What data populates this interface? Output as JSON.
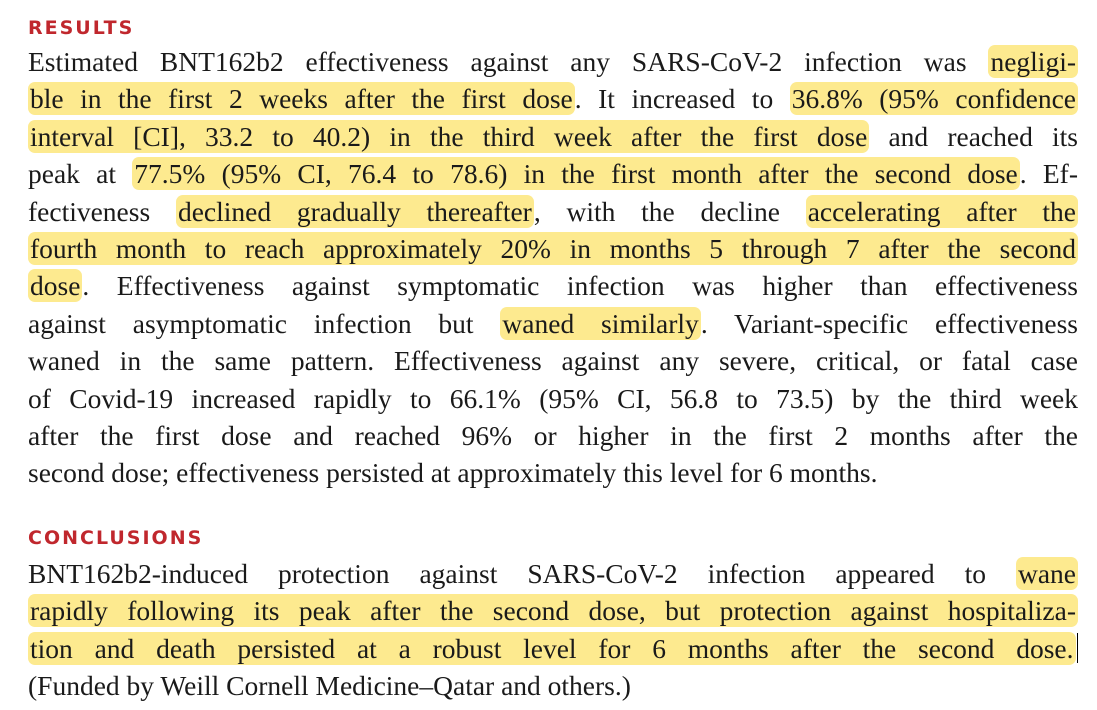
{
  "results": {
    "heading": "RESULTS",
    "lines": [
      {
        "segments": [
          {
            "text": "Estimated BNT162b2 effectiveness against any SARS-CoV-2 infection was ",
            "hl": false
          },
          {
            "text": "negligi-",
            "hl": true
          }
        ]
      },
      {
        "segments": [
          {
            "text": "ble in the first 2 weeks after the first dose",
            "hl": true
          },
          {
            "text": ". It increased to ",
            "hl": false
          },
          {
            "text": "36.8% (95% confidence",
            "hl": true
          }
        ]
      },
      {
        "segments": [
          {
            "text": "interval [CI], 33.2 to 40.2) in the third week after the first dose",
            "hl": true
          },
          {
            "text": " and reached its",
            "hl": false
          }
        ]
      },
      {
        "segments": [
          {
            "text": "peak at ",
            "hl": false
          },
          {
            "text": "77.5% (95% CI, 76.4 to 78.6) in the first month after the second dose",
            "hl": true
          },
          {
            "text": ". Ef-",
            "hl": false
          }
        ]
      },
      {
        "segments": [
          {
            "text": "fectiveness ",
            "hl": false
          },
          {
            "text": "declined gradually thereafter",
            "hl": true
          },
          {
            "text": ", with the decline ",
            "hl": false
          },
          {
            "text": "accelerating after the",
            "hl": true
          }
        ]
      },
      {
        "segments": [
          {
            "text": "fourth month to reach approximately 20% in months 5 through 7 after the second",
            "hl": true
          }
        ]
      },
      {
        "segments": [
          {
            "text": "dose",
            "hl": true
          },
          {
            "text": ". Effectiveness against symptomatic infection was higher than effectiveness",
            "hl": false
          }
        ]
      },
      {
        "segments": [
          {
            "text": "against asymptomatic infection but ",
            "hl": false
          },
          {
            "text": "waned similarly",
            "hl": true
          },
          {
            "text": ". Variant-specific effectiveness",
            "hl": false
          }
        ]
      },
      {
        "segments": [
          {
            "text": "waned in the same pattern. Effectiveness against any severe, critical, or fatal case",
            "hl": false
          }
        ]
      },
      {
        "segments": [
          {
            "text": "of Covid-19 increased rapidly to 66.1% (95% CI, 56.8 to 73.5) by the third week",
            "hl": false
          }
        ]
      },
      {
        "segments": [
          {
            "text": "after the first dose and reached 96% or higher in the first 2 months after the",
            "hl": false
          }
        ]
      },
      {
        "segments": [
          {
            "text": "second dose; effectiveness persisted at approximately this level for 6 months.",
            "hl": false
          }
        ]
      }
    ]
  },
  "conclusions": {
    "heading": "CONCLUSIONS",
    "lines": [
      {
        "segments": [
          {
            "text": "BNT162b2-induced protection against SARS-CoV-2 infection appeared to ",
            "hl": false
          },
          {
            "text": "wane",
            "hl": true
          }
        ]
      },
      {
        "segments": [
          {
            "text": "rapidly following its peak after the second dose, but protection against hospitaliza-",
            "hl": true
          }
        ]
      },
      {
        "segments": [
          {
            "text": "tion and death persisted at a robust level for 6 months after the second dose.",
            "hl": true
          }
        ]
      },
      {
        "segments": [
          {
            "text": "(Funded by Weill Cornell Medicine–Qatar and others.)",
            "hl": false
          }
        ]
      }
    ]
  }
}
